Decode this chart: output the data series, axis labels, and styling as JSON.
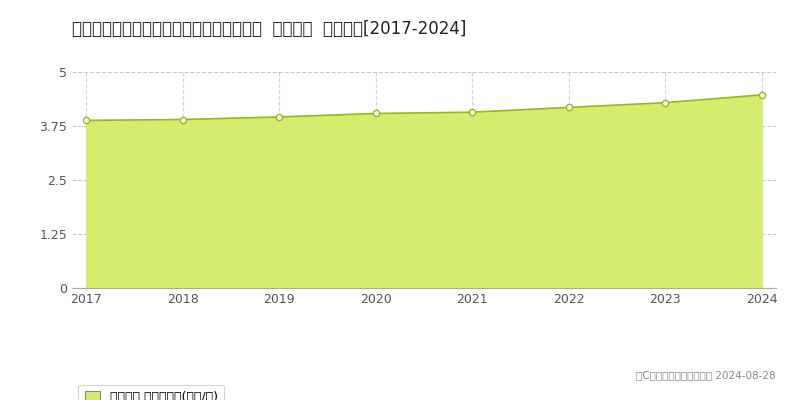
{
  "title": "鳥取県米子市西福原７丁目１０６２番１外  地価公示  地価推移[2017-2024]",
  "years": [
    2017,
    2018,
    2019,
    2020,
    2021,
    2022,
    2023,
    2024
  ],
  "values": [
    3.88,
    3.9,
    3.96,
    4.04,
    4.07,
    4.18,
    4.29,
    4.47
  ],
  "ylim": [
    0,
    5
  ],
  "yticks": [
    0,
    1.25,
    2.5,
    3.75,
    5
  ],
  "line_color": "#9ab811",
  "fill_color": "#d4ed6e",
  "fill_alpha": 1.0,
  "marker_color": "#ffffff",
  "marker_edge_color": "#9ab811",
  "grid_color": "#bbbbbb",
  "bg_color": "#ffffff",
  "title_fontsize": 12,
  "axis_fontsize": 9,
  "legend_label": "地価公示 平均嵪単価(万円/嵪)",
  "copyright_text": "（C）土地価格ドットコム 2024-08-28"
}
